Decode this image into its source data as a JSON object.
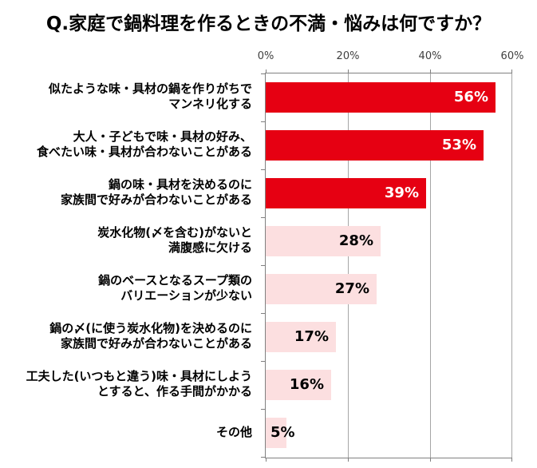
{
  "title": "Q.家庭で鍋料理を作るときの不満・悩みは何ですか？",
  "colors": {
    "bar_highlight": "#e60012",
    "bar_normal": "#fcdfe0",
    "value_on_highlight": "#ffffff",
    "value_on_normal": "#000000",
    "gridline": "#a6a6a6",
    "axis_line": "#808080",
    "axis_text": "#3f3f3f",
    "title_text": "#000000"
  },
  "chart_data": {
    "type": "bar",
    "orientation": "horizontal",
    "title": "Q.家庭で鍋料理を作るときの不満・悩みは何ですか？",
    "x_axis": {
      "position": "top",
      "tick_labels": [
        "0%",
        "20%",
        "40%",
        "60%"
      ],
      "tick_values": [
        0,
        20,
        40,
        60
      ],
      "min": 0,
      "max": 60,
      "grid": true
    },
    "categories": [
      "似たような味・具材の鍋を作りがちでマンネリ化する",
      "大人・子どもで味・具材の好み、食べたい味・具材が合わないことがある",
      "鍋の味・具材を決めるのに家族間で好みが合わないことがある",
      "炭水化物(〆を含む)がないと満腹感に欠ける",
      "鍋のベースとなるスープ類のバリエーションが少ない",
      "鍋の〆(に使う炭水化物)を決めるのに家族間で好みが合わないことがある",
      "工夫した(いつもと違う)味・具材にしようとすると、作る手間がかかる",
      "その他"
    ],
    "category_lines": [
      [
        "似たような味・具材の鍋を作りがちで",
        "マンネリ化する"
      ],
      [
        "大人・子どもで味・具材の好み、",
        "食べたい味・具材が合わないことがある"
      ],
      [
        "鍋の味・具材を決めるのに",
        "家族間で好みが合わないことがある"
      ],
      [
        "炭水化物(〆を含む)がないと",
        "満腹感に欠ける"
      ],
      [
        "鍋のベースとなるスープ類の",
        "バリエーションが少ない"
      ],
      [
        "鍋の〆(に使う炭水化物)を決めるのに",
        "家族間で好みが合わないことがある"
      ],
      [
        "工夫した(いつもと違う)味・具材にしよう",
        "とすると、作る手間がかかる"
      ],
      [
        "その他"
      ]
    ],
    "values": [
      56,
      53,
      39,
      28,
      27,
      17,
      16,
      5
    ],
    "value_labels": [
      "56%",
      "53%",
      "39%",
      "28%",
      "27%",
      "17%",
      "16%",
      "5%"
    ],
    "highlighted": [
      true,
      true,
      true,
      false,
      false,
      false,
      false,
      false
    ],
    "legend": null
  }
}
